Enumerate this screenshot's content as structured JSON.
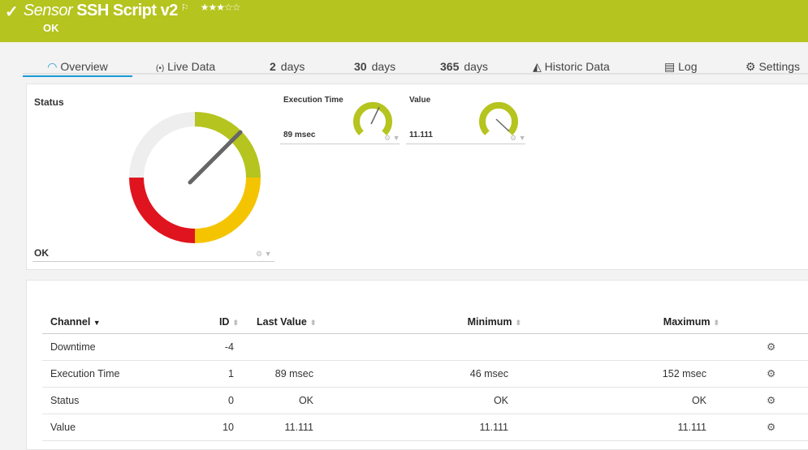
{
  "header": {
    "prefix": "Sensor",
    "name": "SSH Script v2",
    "status": "OK",
    "stars": "★★★☆☆",
    "rating": 3,
    "color": "#b5c41e"
  },
  "tabs": [
    {
      "label": "Overview"
    },
    {
      "label": "Live Data"
    },
    {
      "num": "2",
      "label": "days"
    },
    {
      "num": "30",
      "label": "days"
    },
    {
      "num": "365",
      "label": "days"
    },
    {
      "label": "Historic Data"
    },
    {
      "label": "Log"
    },
    {
      "label": "Settings"
    }
  ],
  "status_gauge": {
    "title": "Status",
    "value": "OK"
  },
  "gauges": [
    {
      "title": "Execution Time",
      "value": "89 msec"
    },
    {
      "title": "Value",
      "value": "11.111"
    }
  ],
  "table": {
    "headers": {
      "channel": "Channel",
      "id": "ID",
      "last": "Last Value",
      "min": "Minimum",
      "max": "Maximum"
    },
    "rows": [
      {
        "channel": "Downtime",
        "id": "-4",
        "last": "",
        "min": "",
        "max": ""
      },
      {
        "channel": "Execution Time",
        "id": "1",
        "last": "89 msec",
        "min": "46 msec",
        "max": "152 msec"
      },
      {
        "channel": "Status",
        "id": "0",
        "last": "OK",
        "min": "OK",
        "max": "OK"
      },
      {
        "channel": "Value",
        "id": "10",
        "last": "11.111",
        "min": "11.111",
        "max": "11.111"
      }
    ]
  }
}
